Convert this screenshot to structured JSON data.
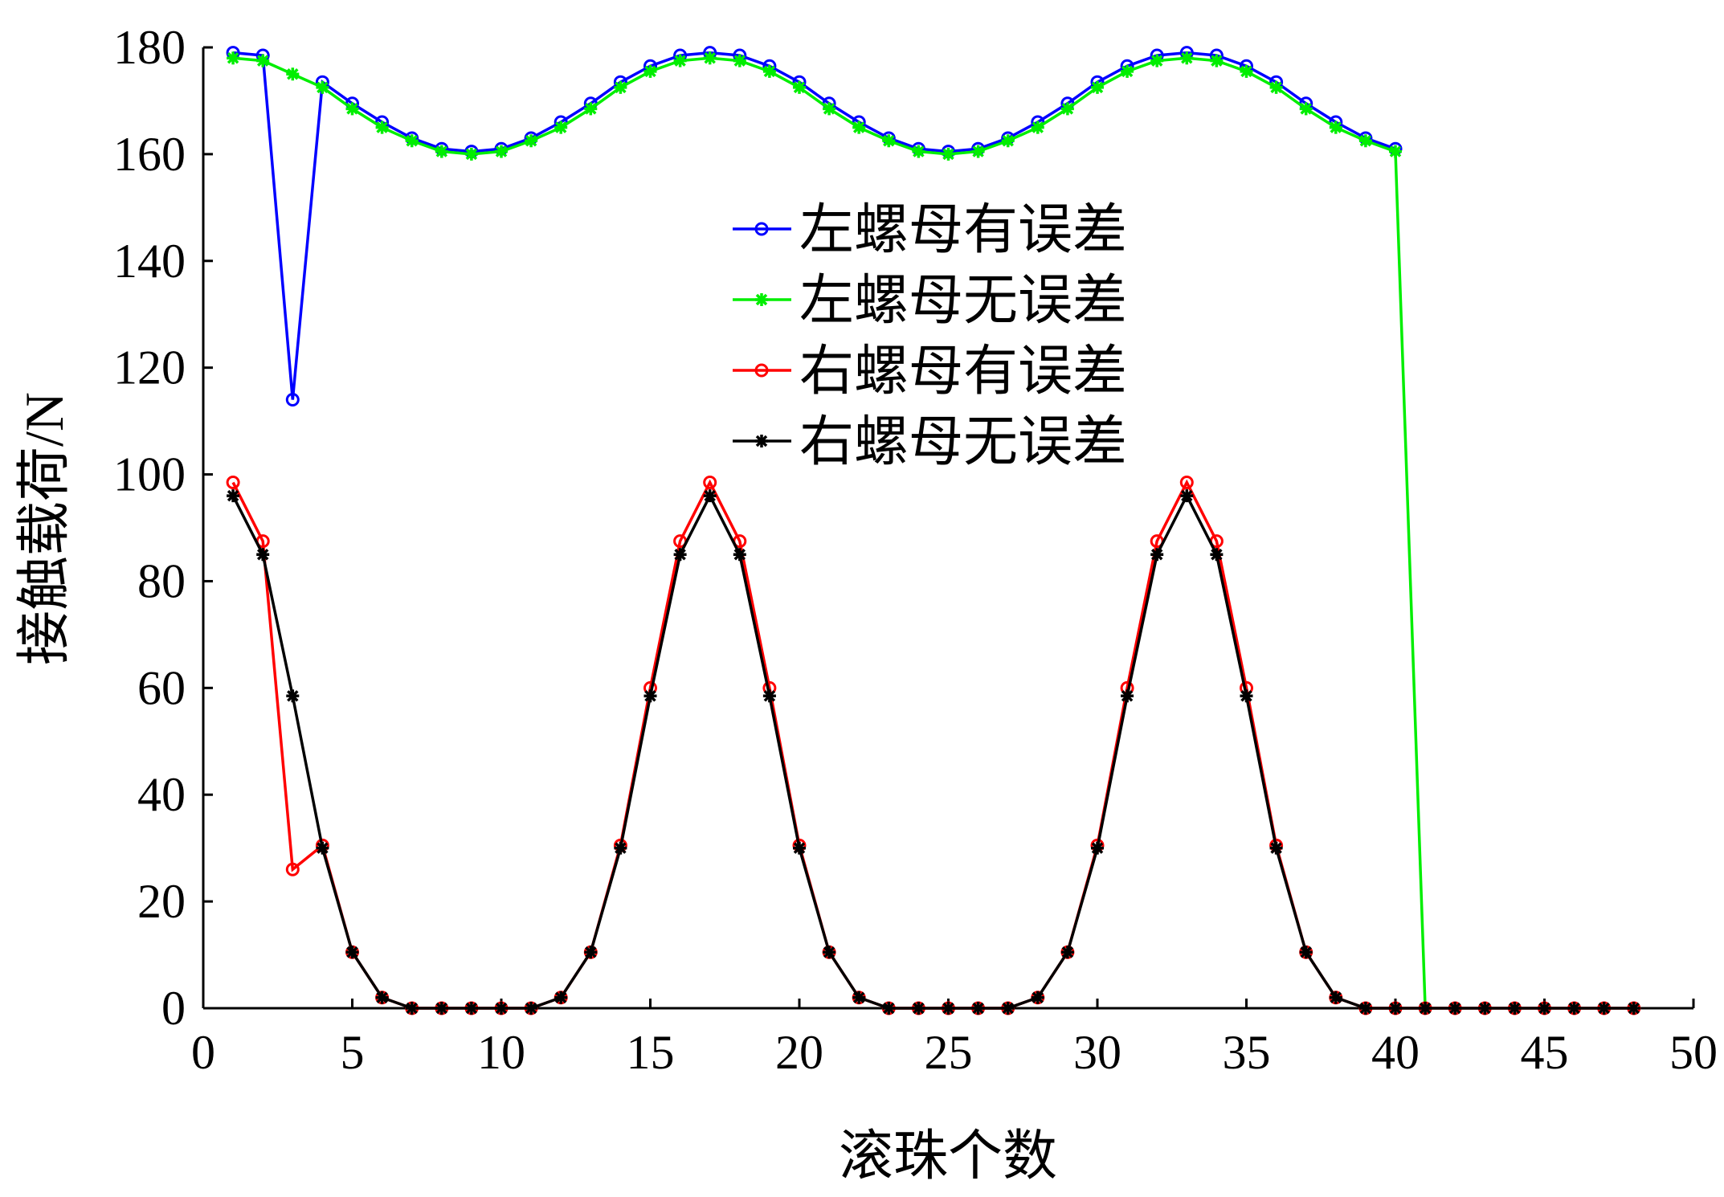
{
  "chart_data": {
    "type": "line",
    "title": "",
    "xlabel": "滚珠个数",
    "ylabel": "接触载荷/N",
    "xlim": [
      0,
      50
    ],
    "ylim": [
      0,
      180
    ],
    "xticks": [
      0,
      5,
      10,
      15,
      20,
      25,
      30,
      35,
      40,
      45,
      50
    ],
    "yticks": [
      0,
      20,
      40,
      60,
      80,
      100,
      120,
      140,
      160,
      180
    ],
    "grid": false,
    "legend_position": "center-right-top",
    "series": [
      {
        "name": "左螺母有误差",
        "color": "#0000ff",
        "marker": "circle",
        "x": [
          1,
          2,
          3,
          4,
          5,
          6,
          7,
          8,
          9,
          10,
          11,
          12,
          13,
          14,
          15,
          16,
          17,
          18,
          19,
          20,
          21,
          22,
          23,
          24,
          25,
          26,
          27,
          28,
          29,
          30,
          31,
          32,
          33,
          34,
          35,
          36,
          37,
          38,
          39,
          40
        ],
        "values": [
          179,
          178.5,
          114,
          173.5,
          169.5,
          166,
          163,
          161,
          160.5,
          161,
          163,
          166,
          169.5,
          173.5,
          176.5,
          178.5,
          179,
          178.5,
          176.5,
          173.5,
          169.5,
          166,
          163,
          161,
          160.5,
          161,
          163,
          166,
          169.5,
          173.5,
          176.5,
          178.5,
          179,
          178.5,
          176.5,
          173.5,
          169.5,
          166,
          163,
          161
        ]
      },
      {
        "name": "左螺母无误差",
        "color": "#00ee00",
        "marker": "star",
        "x": [
          1,
          2,
          3,
          4,
          5,
          6,
          7,
          8,
          9,
          10,
          11,
          12,
          13,
          14,
          15,
          16,
          17,
          18,
          19,
          20,
          21,
          22,
          23,
          24,
          25,
          26,
          27,
          28,
          29,
          30,
          31,
          32,
          33,
          34,
          35,
          36,
          37,
          38,
          39,
          40,
          41
        ],
        "values": [
          178,
          177.5,
          175,
          172.5,
          168.5,
          165,
          162.5,
          160.5,
          160,
          160.5,
          162.5,
          165,
          168.5,
          172.5,
          175.5,
          177.5,
          178,
          177.5,
          175.5,
          172.5,
          168.5,
          165,
          162.5,
          160.5,
          160,
          160.5,
          162.5,
          165,
          168.5,
          172.5,
          175.5,
          177.5,
          178,
          177.5,
          175.5,
          172.5,
          168.5,
          165,
          162.5,
          160.5,
          0
        ]
      },
      {
        "name": "右螺母有误差",
        "color": "#ff0000",
        "marker": "circle",
        "x": [
          1,
          2,
          3,
          4,
          5,
          6,
          7,
          8,
          9,
          10,
          11,
          12,
          13,
          14,
          15,
          16,
          17,
          18,
          19,
          20,
          21,
          22,
          23,
          24,
          25,
          26,
          27,
          28,
          29,
          30,
          31,
          32,
          33,
          34,
          35,
          36,
          37,
          38,
          39,
          40,
          41,
          42,
          43,
          44,
          45,
          46,
          47,
          48
        ],
        "values": [
          98.5,
          87.5,
          26,
          30.5,
          10.5,
          2,
          0,
          0,
          0,
          0,
          0,
          2,
          10.5,
          30.5,
          60,
          87.5,
          98.5,
          87.5,
          60,
          30.5,
          10.5,
          2,
          0,
          0,
          0,
          0,
          0,
          2,
          10.5,
          30.5,
          60,
          87.5,
          98.5,
          87.5,
          60,
          30.5,
          10.5,
          2,
          0,
          0,
          0,
          0,
          0,
          0,
          0,
          0,
          0,
          0
        ]
      },
      {
        "name": "右螺母无误差",
        "color": "#000000",
        "marker": "star",
        "x": [
          1,
          2,
          3,
          4,
          5,
          6,
          7,
          8,
          9,
          10,
          11,
          12,
          13,
          14,
          15,
          16,
          17,
          18,
          19,
          20,
          21,
          22,
          23,
          24,
          25,
          26,
          27,
          28,
          29,
          30,
          31,
          32,
          33,
          34,
          35,
          36,
          37,
          38,
          39,
          40,
          41,
          42,
          43,
          44,
          45,
          46,
          47,
          48
        ],
        "values": [
          96,
          85,
          58.5,
          30,
          10.5,
          2,
          0,
          0,
          0,
          0,
          0,
          2,
          10.5,
          30,
          58.5,
          85,
          96,
          85,
          58.5,
          30,
          10.5,
          2,
          0,
          0,
          0,
          0,
          0,
          2,
          10.5,
          30,
          58.5,
          85,
          96,
          85,
          58.5,
          30,
          10.5,
          2,
          0,
          0,
          0,
          0,
          0,
          0,
          0,
          0,
          0,
          0
        ]
      }
    ]
  }
}
